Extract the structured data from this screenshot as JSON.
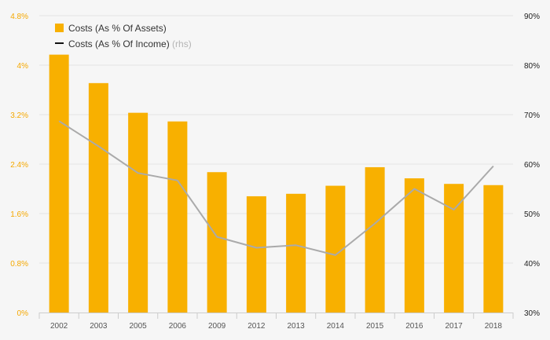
{
  "chart_data": {
    "type": "bar",
    "categories": [
      "2002",
      "2003",
      "2005",
      "2006",
      "2009",
      "2012",
      "2013",
      "2014",
      "2015",
      "2016",
      "2017",
      "2018"
    ],
    "series": [
      {
        "name": "Costs (As % Of Assets)",
        "type": "bar",
        "axis": "left",
        "color": "#f8b000",
        "values": [
          4.17,
          3.71,
          3.23,
          3.09,
          2.27,
          1.88,
          1.92,
          2.05,
          2.35,
          2.17,
          2.08,
          2.06
        ]
      },
      {
        "name": "Costs (As % Of Income)",
        "name_suffix": "(rhs)",
        "type": "line",
        "axis": "right",
        "color": "#aaaaaa",
        "values": [
          68.7,
          63.6,
          58.2,
          56.7,
          45.3,
          43.1,
          43.6,
          41.6,
          48.0,
          55.0,
          50.8,
          59.6
        ]
      }
    ],
    "y_left": {
      "lim": [
        0,
        4.8
      ],
      "ticks": [
        "0%",
        "0.8%",
        "1.6%",
        "2.4%",
        "3.2%",
        "4%",
        "4.8%"
      ],
      "color": "#f5a800"
    },
    "y_right": {
      "lim": [
        30,
        90
      ],
      "ticks": [
        "30%",
        "40%",
        "50%",
        "60%",
        "70%",
        "80%",
        "90%"
      ],
      "color": "#222222"
    },
    "legend_position": "top-left",
    "grid": true,
    "title": "",
    "xlabel": "",
    "ylabel": ""
  }
}
